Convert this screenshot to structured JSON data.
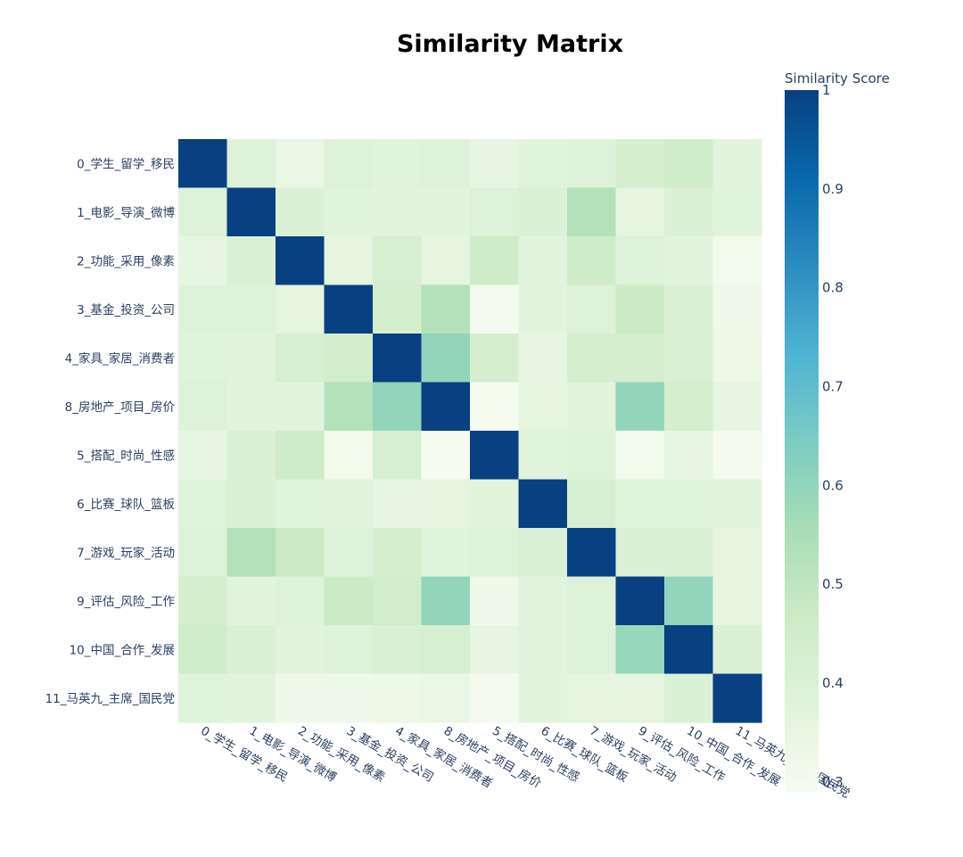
{
  "chart_data": {
    "type": "heatmap",
    "title": "Similarity Matrix",
    "labels": [
      "0_学生_留学_移民",
      "1_电影_导演_微博",
      "2_功能_采用_像素",
      "3_基金_投资_公司",
      "4_家具_家居_消费者",
      "8_房地产_项目_房价",
      "5_搭配_时尚_性感",
      "6_比赛_球队_篮板",
      "7_游戏_玩家_活动",
      "9_评估_风险_工作",
      "10_中国_合作_发展",
      "11_马英九_主席_国民党"
    ],
    "z": [
      [
        1.0,
        0.39,
        0.34,
        0.39,
        0.38,
        0.39,
        0.35,
        0.38,
        0.39,
        0.43,
        0.45,
        0.37
      ],
      [
        0.39,
        1.0,
        0.4,
        0.38,
        0.37,
        0.37,
        0.39,
        0.4,
        0.53,
        0.36,
        0.4,
        0.38
      ],
      [
        0.35,
        0.4,
        1.0,
        0.36,
        0.42,
        0.36,
        0.46,
        0.37,
        0.46,
        0.39,
        0.37,
        0.31
      ],
      [
        0.39,
        0.39,
        0.36,
        1.0,
        0.43,
        0.53,
        0.3,
        0.37,
        0.39,
        0.47,
        0.4,
        0.32
      ],
      [
        0.38,
        0.37,
        0.42,
        0.44,
        1.0,
        0.6,
        0.43,
        0.35,
        0.43,
        0.43,
        0.41,
        0.33
      ],
      [
        0.39,
        0.37,
        0.37,
        0.53,
        0.6,
        1.0,
        0.29,
        0.36,
        0.37,
        0.6,
        0.43,
        0.35
      ],
      [
        0.35,
        0.4,
        0.46,
        0.31,
        0.42,
        0.29,
        1.0,
        0.38,
        0.39,
        0.31,
        0.35,
        0.3
      ],
      [
        0.38,
        0.4,
        0.38,
        0.37,
        0.35,
        0.36,
        0.37,
        1.0,
        0.42,
        0.38,
        0.38,
        0.37
      ],
      [
        0.39,
        0.53,
        0.47,
        0.39,
        0.43,
        0.38,
        0.39,
        0.41,
        1.0,
        0.4,
        0.4,
        0.36
      ],
      [
        0.43,
        0.37,
        0.39,
        0.47,
        0.44,
        0.6,
        0.32,
        0.37,
        0.39,
        1.0,
        0.6,
        0.36
      ],
      [
        0.45,
        0.4,
        0.37,
        0.39,
        0.41,
        0.42,
        0.35,
        0.37,
        0.39,
        0.59,
        1.0,
        0.4
      ],
      [
        0.38,
        0.37,
        0.32,
        0.32,
        0.33,
        0.34,
        0.3,
        0.37,
        0.36,
        0.36,
        0.4,
        1.0
      ]
    ],
    "colorscale_name": "GnBu",
    "colorscale": [
      [
        0.0,
        "#f7fcf0"
      ],
      [
        0.125,
        "#e0f3db"
      ],
      [
        0.25,
        "#ccebc5"
      ],
      [
        0.375,
        "#a8ddb5"
      ],
      [
        0.5,
        "#7bccc4"
      ],
      [
        0.625,
        "#4eb3d3"
      ],
      [
        0.75,
        "#2b8cbe"
      ],
      [
        0.875,
        "#0868ac"
      ],
      [
        1.0,
        "#084081"
      ]
    ],
    "zmin": 0.29,
    "zmax": 1.0,
    "colorbar": {
      "title": "Similarity Score",
      "tickvals": [
        1,
        0.9,
        0.8,
        0.7,
        0.6,
        0.5,
        0.4,
        0.3
      ],
      "ticktext": [
        "1",
        "0.9",
        "0.8",
        "0.7",
        "0.6",
        "0.5",
        "0.4",
        "0.3"
      ]
    },
    "grid": false,
    "x_tick_angle_deg": 30
  }
}
